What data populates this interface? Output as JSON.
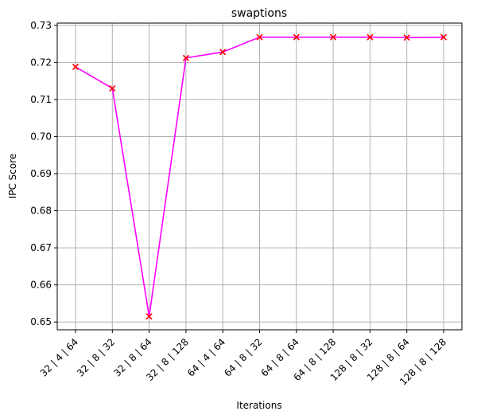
{
  "chart_data": {
    "type": "line",
    "title": "swaptions",
    "xlabel": "Iterations",
    "ylabel": "IPC Score",
    "categories": [
      "32 | 4 | 64",
      "32 | 8 | 32",
      "32 | 8 | 64",
      "32 | 8 | 128",
      "64 | 4 | 64",
      "64 | 8 | 32",
      "64 | 8 | 64",
      "64 | 8 | 128",
      "128 | 8 | 32",
      "128 | 8 | 64",
      "128 | 8 | 128"
    ],
    "series": [
      {
        "values": [
          0.7188,
          0.713,
          0.6515,
          0.7212,
          0.7228,
          0.7268,
          0.7268,
          0.7268,
          0.7268,
          0.7267,
          0.7268
        ],
        "line_color": "#ff00ff",
        "marker": "x",
        "marker_color": "#ff0000"
      }
    ],
    "ylim": [
      0.6479,
      0.7306
    ],
    "yticks": [
      0.65,
      0.66,
      0.67,
      0.68,
      0.69,
      0.7,
      0.71,
      0.72,
      0.73
    ],
    "ytick_labels": [
      "0.65",
      "0.66",
      "0.67",
      "0.68",
      "0.69",
      "0.70",
      "0.71",
      "0.72",
      "0.73"
    ],
    "grid": true,
    "legend": false,
    "grid_color": "#b0b0b0"
  }
}
